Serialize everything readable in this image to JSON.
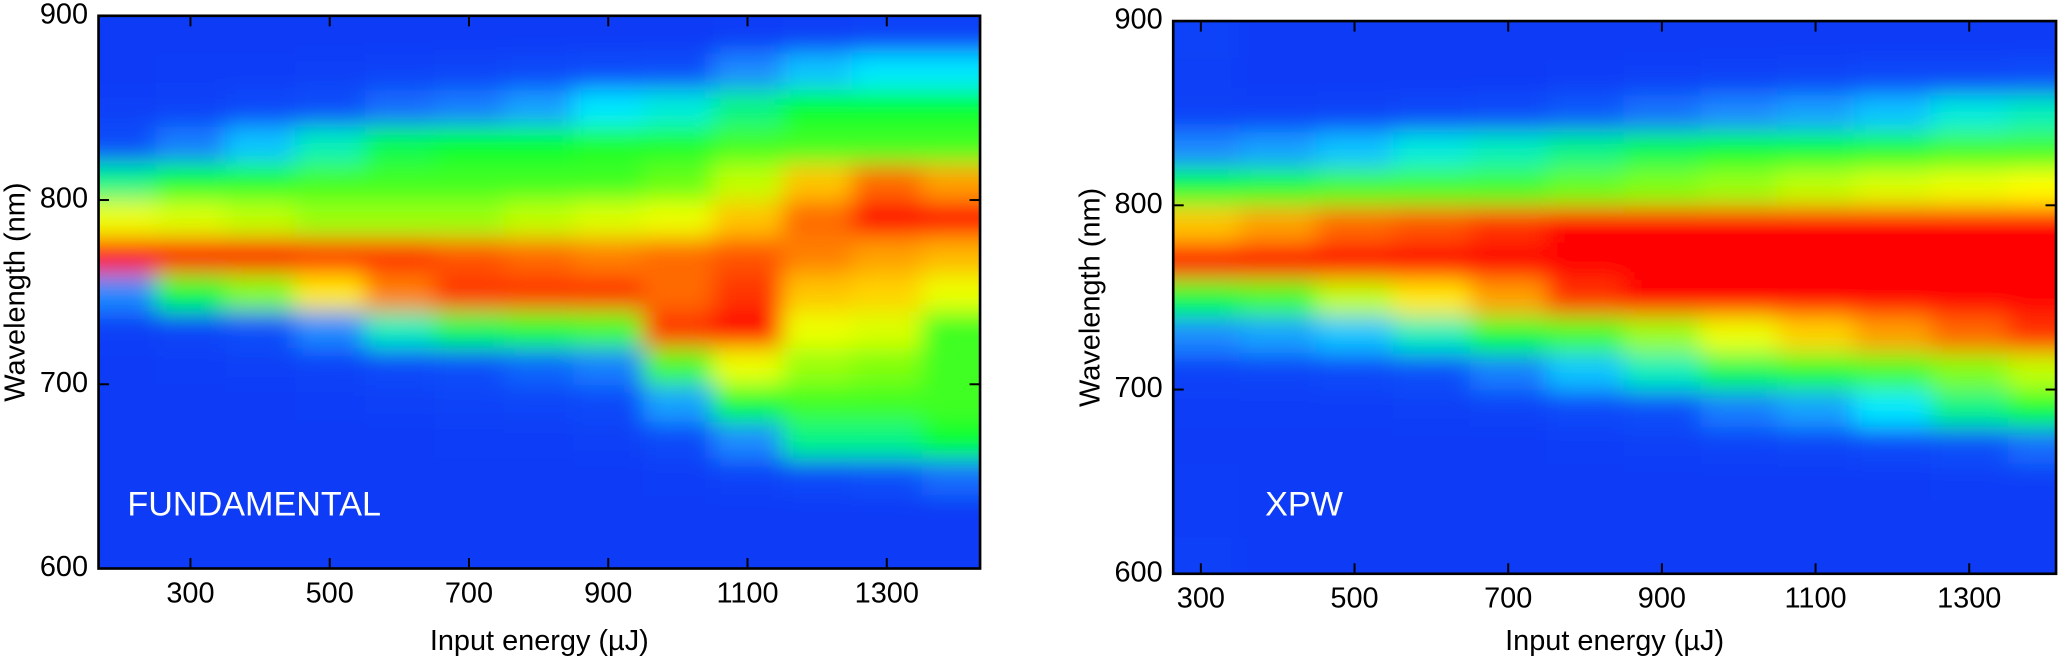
{
  "chart_data": [
    {
      "type": "heatmap",
      "annotation": "FUNDAMENTAL",
      "xlabel": "Input energy (µJ)",
      "ylabel": "Wavelength (nm)",
      "xlim": [
        168,
        1434
      ],
      "ylim": [
        600,
        900
      ],
      "xticks": [
        300,
        500,
        700,
        900,
        1100,
        1300
      ],
      "yticks": [
        600,
        700,
        800,
        900
      ],
      "colormap": [
        [
          0,
          "#0a34f5"
        ],
        [
          0.2,
          "#0a50fa"
        ],
        [
          0.3,
          "#1a8cff"
        ],
        [
          0.38,
          "#00e8ff"
        ],
        [
          0.5,
          "#00ff30"
        ],
        [
          0.65,
          "#c0ff00"
        ],
        [
          0.72,
          "#ffff00"
        ],
        [
          0.85,
          "#ffa000"
        ],
        [
          1,
          "#ff0000"
        ]
      ],
      "x": [
        200,
        300,
        400,
        500,
        600,
        700,
        800,
        900,
        1000,
        1100,
        1200,
        1300,
        1400
      ],
      "y": [
        610,
        630,
        650,
        670,
        690,
        710,
        730,
        750,
        770,
        790,
        810,
        830,
        850,
        870,
        890
      ],
      "z": [
        [
          0.05,
          0.05,
          0.05,
          0.05,
          0.05,
          0.05,
          0.05,
          0.05,
          0.05,
          0.05,
          0.05,
          0.05,
          0.05
        ],
        [
          0.05,
          0.05,
          0.05,
          0.05,
          0.05,
          0.05,
          0.05,
          0.05,
          0.05,
          0.05,
          0.05,
          0.05,
          0.05
        ],
        [
          0.05,
          0.05,
          0.05,
          0.05,
          0.05,
          0.05,
          0.05,
          0.05,
          0.07,
          0.1,
          0.15,
          0.2,
          0.25
        ],
        [
          0.05,
          0.05,
          0.05,
          0.05,
          0.05,
          0.06,
          0.07,
          0.08,
          0.15,
          0.3,
          0.45,
          0.45,
          0.5
        ],
        [
          0.05,
          0.05,
          0.05,
          0.06,
          0.08,
          0.1,
          0.12,
          0.15,
          0.32,
          0.5,
          0.55,
          0.55,
          0.55
        ],
        [
          0.05,
          0.06,
          0.08,
          0.1,
          0.14,
          0.2,
          0.24,
          0.28,
          0.55,
          0.7,
          0.62,
          0.6,
          0.55
        ],
        [
          0.08,
          0.12,
          0.2,
          0.3,
          0.42,
          0.48,
          0.52,
          0.55,
          0.95,
          1,
          0.7,
          0.68,
          0.55
        ],
        [
          0.3,
          0.5,
          0.6,
          0.75,
          0.88,
          0.95,
          0.95,
          0.95,
          0.9,
          0.95,
          0.8,
          0.78,
          0.7
        ],
        [
          1,
          1,
          1,
          0.95,
          0.95,
          0.92,
          0.9,
          0.88,
          0.9,
          0.92,
          0.88,
          0.85,
          0.82
        ],
        [
          0.7,
          0.68,
          0.65,
          0.62,
          0.62,
          0.62,
          0.65,
          0.68,
          0.7,
          0.8,
          0.9,
          1,
          1
        ],
        [
          0.45,
          0.5,
          0.52,
          0.55,
          0.55,
          0.55,
          0.55,
          0.55,
          0.58,
          0.65,
          0.8,
          0.9,
          0.85
        ],
        [
          0.2,
          0.28,
          0.35,
          0.42,
          0.48,
          0.5,
          0.5,
          0.52,
          0.52,
          0.55,
          0.55,
          0.55,
          0.55
        ],
        [
          0.08,
          0.1,
          0.15,
          0.2,
          0.25,
          0.28,
          0.32,
          0.38,
          0.4,
          0.45,
          0.5,
          0.5,
          0.5
        ],
        [
          0.05,
          0.06,
          0.07,
          0.08,
          0.1,
          0.12,
          0.15,
          0.18,
          0.2,
          0.3,
          0.35,
          0.38,
          0.38
        ],
        [
          0.05,
          0.05,
          0.05,
          0.05,
          0.05,
          0.05,
          0.05,
          0.05,
          0.05,
          0.06,
          0.08,
          0.1,
          0.1
        ]
      ]
    },
    {
      "type": "heatmap",
      "annotation": "XPW",
      "xlabel": "Input energy (µJ)",
      "ylabel": "Wavelength (nm)",
      "xlim": [
        264,
        1413
      ],
      "ylim": [
        600,
        900
      ],
      "xticks": [
        300,
        500,
        700,
        900,
        1100,
        1300
      ],
      "yticks": [
        600,
        700,
        800,
        900
      ],
      "colormap": [
        [
          0,
          "#0a34f5"
        ],
        [
          0.2,
          "#0a50fa"
        ],
        [
          0.3,
          "#1a8cff"
        ],
        [
          0.38,
          "#00e8ff"
        ],
        [
          0.5,
          "#00ff30"
        ],
        [
          0.65,
          "#c0ff00"
        ],
        [
          0.72,
          "#ffff00"
        ],
        [
          0.85,
          "#ffa000"
        ],
        [
          1,
          "#ff0000"
        ]
      ],
      "x": [
        300,
        400,
        500,
        600,
        700,
        800,
        900,
        1000,
        1100,
        1200,
        1300,
        1400
      ],
      "y": [
        610,
        630,
        650,
        670,
        690,
        710,
        730,
        750,
        770,
        790,
        810,
        830,
        850,
        870,
        890
      ],
      "z": [
        [
          0.08,
          0.05,
          0.05,
          0.05,
          0.05,
          0.05,
          0.05,
          0.05,
          0.05,
          0.05,
          0.05,
          0.05
        ],
        [
          0.06,
          0.05,
          0.05,
          0.05,
          0.05,
          0.05,
          0.05,
          0.05,
          0.05,
          0.05,
          0.05,
          0.05
        ],
        [
          0.06,
          0.05,
          0.05,
          0.05,
          0.05,
          0.05,
          0.05,
          0.05,
          0.05,
          0.05,
          0.06,
          0.07
        ],
        [
          0.05,
          0.05,
          0.05,
          0.05,
          0.05,
          0.06,
          0.08,
          0.1,
          0.12,
          0.15,
          0.2,
          0.25
        ],
        [
          0.06,
          0.06,
          0.07,
          0.08,
          0.1,
          0.15,
          0.2,
          0.28,
          0.32,
          0.38,
          0.45,
          0.5
        ],
        [
          0.1,
          0.12,
          0.15,
          0.2,
          0.28,
          0.35,
          0.42,
          0.48,
          0.52,
          0.55,
          0.6,
          0.65
        ],
        [
          0.3,
          0.32,
          0.35,
          0.42,
          0.5,
          0.55,
          0.62,
          0.7,
          0.78,
          0.85,
          0.9,
          0.95
        ],
        [
          0.5,
          0.55,
          0.65,
          0.75,
          0.85,
          0.95,
          1,
          1,
          1,
          1,
          1,
          1
        ],
        [
          1,
          1,
          1,
          1,
          1,
          1,
          1,
          1,
          1,
          1,
          1,
          1
        ],
        [
          0.8,
          0.85,
          0.9,
          0.92,
          0.95,
          1,
          1,
          1,
          1,
          1,
          1,
          1
        ],
        [
          0.5,
          0.52,
          0.55,
          0.55,
          0.55,
          0.58,
          0.6,
          0.62,
          0.65,
          0.68,
          0.7,
          0.72
        ],
        [
          0.3,
          0.32,
          0.35,
          0.4,
          0.42,
          0.45,
          0.48,
          0.5,
          0.5,
          0.52,
          0.55,
          0.55
        ],
        [
          0.1,
          0.1,
          0.12,
          0.14,
          0.18,
          0.22,
          0.26,
          0.3,
          0.32,
          0.35,
          0.4,
          0.42
        ],
        [
          0.08,
          0.05,
          0.05,
          0.05,
          0.05,
          0.06,
          0.08,
          0.1,
          0.12,
          0.14,
          0.16,
          0.18
        ],
        [
          0.1,
          0.05,
          0.05,
          0.05,
          0.05,
          0.05,
          0.05,
          0.05,
          0.05,
          0.05,
          0.05,
          0.05
        ]
      ]
    }
  ]
}
